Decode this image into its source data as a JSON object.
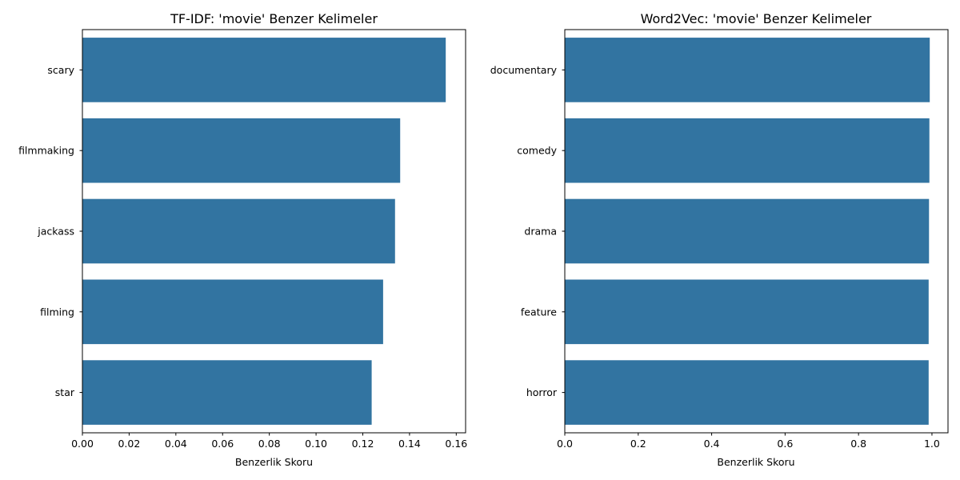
{
  "colors": {
    "bar": "#3274a1",
    "axis": "#000000",
    "background": "#ffffff"
  },
  "chart_data": [
    {
      "type": "bar",
      "orientation": "horizontal",
      "title": "TF-IDF: 'movie' Benzer Kelimeler",
      "xlabel": "Benzerlik Skoru",
      "ylabel": "",
      "categories": [
        "scary",
        "filmmaking",
        "jackass",
        "filming",
        "star"
      ],
      "values": [
        0.1555,
        0.136,
        0.1338,
        0.1287,
        0.1238
      ],
      "xlim": [
        0,
        0.164
      ],
      "xticks": [
        0.0,
        0.02,
        0.04,
        0.06,
        0.08,
        0.1,
        0.12,
        0.14,
        0.16
      ],
      "xtick_labels": [
        "0.00",
        "0.02",
        "0.04",
        "0.06",
        "0.08",
        "0.10",
        "0.12",
        "0.14",
        "0.16"
      ],
      "grid": false,
      "legend": "none"
    },
    {
      "type": "bar",
      "orientation": "horizontal",
      "title": "Word2Vec: 'movie' Benzer Kelimeler",
      "xlabel": "Benzerlik Skoru",
      "ylabel": "",
      "categories": [
        "documentary",
        "comedy",
        "drama",
        "feature",
        "horror"
      ],
      "values": [
        0.994,
        0.993,
        0.992,
        0.991,
        0.991
      ],
      "xlim": [
        0,
        1.0437
      ],
      "xticks": [
        0.0,
        0.2,
        0.4,
        0.6,
        0.8,
        1.0
      ],
      "xtick_labels": [
        "0.0",
        "0.2",
        "0.4",
        "0.6",
        "0.8",
        "1.0"
      ],
      "grid": false,
      "legend": "none"
    }
  ]
}
